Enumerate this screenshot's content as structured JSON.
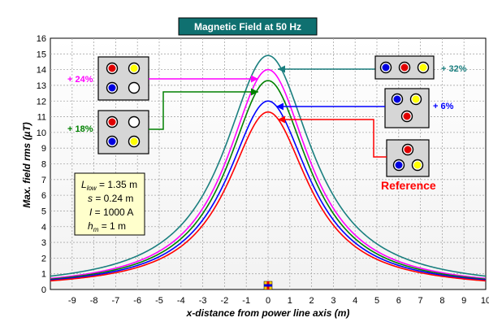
{
  "chart_data": {
    "type": "line",
    "title": "Magnetic Field at 50 Hz",
    "xlabel": "x-distance from power line axis (m)",
    "ylabel": "Max. field rms (µT)",
    "xlim": [
      -10,
      10
    ],
    "ylim": [
      0,
      16
    ],
    "x_ticks": [
      "-9",
      "-8",
      "-7",
      "-6",
      "-5",
      "-4",
      "-3",
      "-2",
      "-1",
      "0",
      "1",
      "2",
      "3",
      "4",
      "5",
      "6",
      "7",
      "8",
      "9",
      "10"
    ],
    "y_ticks": [
      "0",
      "1",
      "2",
      "3",
      "4",
      "5",
      "6",
      "7",
      "8",
      "9",
      "10",
      "11",
      "12",
      "13",
      "14",
      "15",
      "16"
    ],
    "grid": true,
    "series": [
      {
        "name": "+ 32%",
        "color": "#1a7f7f",
        "peak": 14.9,
        "edge": 0.85
      },
      {
        "name": "+ 24%",
        "color": "#ff00ff",
        "peak": 14.0,
        "edge": 0.7
      },
      {
        "name": "+ 18%",
        "color": "#008000",
        "peak": 13.3,
        "edge": 0.65
      },
      {
        "name": "+ 6%",
        "color": "#0000ff",
        "peak": 12.0,
        "edge": 0.6
      },
      {
        "name": "Reference",
        "color": "#ff0000",
        "peak": 11.3,
        "edge": 0.55
      }
    ],
    "parameters": {
      "l_low": {
        "symbol": "L",
        "sub": "low",
        "value": " = 1.35 m"
      },
      "s": {
        "symbol": "s",
        "value": " = 0.24 m"
      },
      "current": {
        "symbol": "I",
        "value": " = 1000 A"
      },
      "h_m": {
        "symbol": "h",
        "sub": "m",
        "value": " = 1 m"
      }
    }
  },
  "phase_colors": {
    "red": "#e00000",
    "yellow": "#ffff00",
    "blue": "#0000e0",
    "white": "#ffffff"
  }
}
